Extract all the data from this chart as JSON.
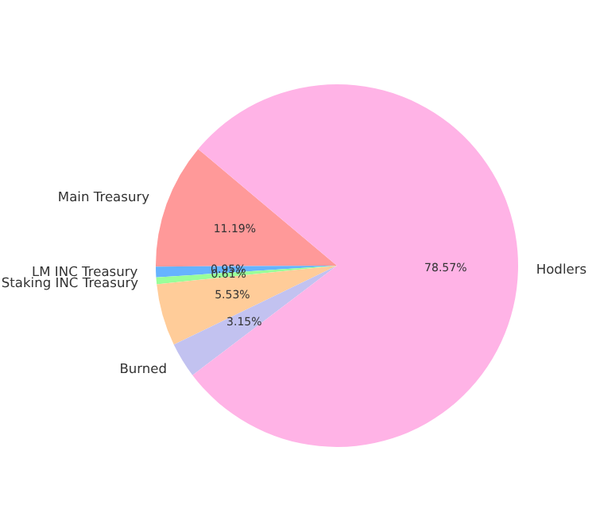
{
  "chart_data": {
    "type": "pie",
    "categories": [
      "Main Treasury",
      "LM INC Treasury",
      "Staking INC Treasury",
      null,
      "Burned",
      "Hodlers"
    ],
    "values": [
      11.19,
      0.95,
      0.61,
      5.53,
      3.15,
      78.57
    ],
    "colors": [
      "#ff9999",
      "#66b3ff",
      "#99ff99",
      "#ffcc99",
      "#c2c2f0",
      "#ffb3e6"
    ],
    "value_labels": [
      "11.19%",
      "0.95%",
      "0.61%",
      "5.53%",
      "3.15%",
      "78.57%"
    ]
  }
}
